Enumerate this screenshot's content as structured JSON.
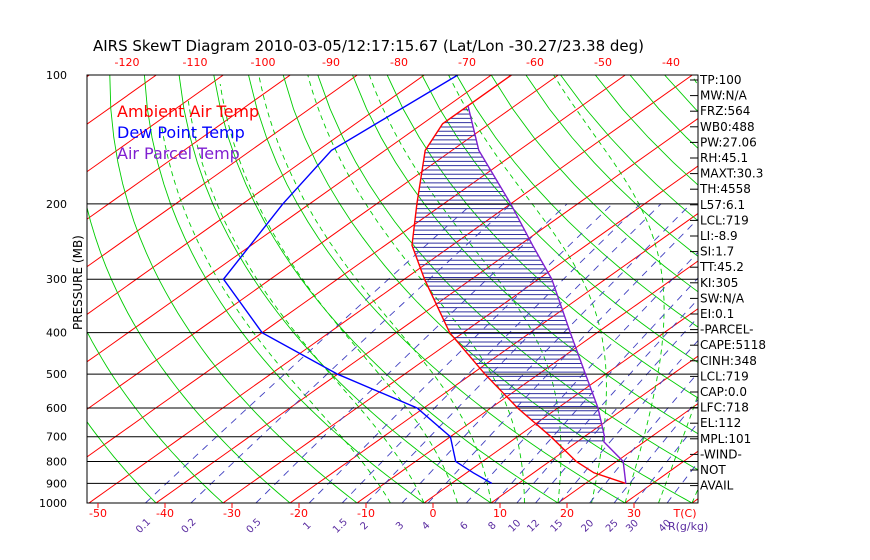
{
  "chart_data": {
    "type": "line",
    "title": "AIRS SkewT Diagram 2010-03-05/12:17:15.67 (Lat/Lon -30.27/23.38 deg)",
    "ylabel": "PRESSURE (MB)",
    "pressure_ticks": [
      100,
      200,
      300,
      400,
      500,
      600,
      700,
      800,
      900,
      1000
    ],
    "bottom_temp_ticks": [
      -50,
      -40,
      -30,
      -20,
      -10,
      0,
      10,
      20,
      30
    ],
    "bottom_temp_unit": "T(C)",
    "top_temp_ticks": [
      -120,
      -110,
      -100,
      -90,
      -80,
      -70,
      -60,
      -50,
      -40
    ],
    "mixing_ratio_ticks": [
      "0.1",
      "0.2",
      "0.5",
      "1",
      "1.5",
      "2",
      "3",
      "4",
      "6",
      "8",
      "10",
      "12",
      "15",
      "20",
      "25",
      "30",
      "40"
    ],
    "mixing_ratio_unit": "R(g/kg)",
    "legend": [
      {
        "name": "Ambient Air Temp",
        "color": "#ff0000"
      },
      {
        "name": "Dew Point Temp",
        "color": "#0000ff"
      },
      {
        "name": "Air Parcel Temp",
        "color": "#7f1fd0"
      }
    ],
    "series": [
      {
        "name": "Ambient Air Temp",
        "color": "#ff0000",
        "points": [
          [
            100,
            -77
          ],
          [
            130,
            -77
          ],
          [
            150,
            -74
          ],
          [
            200,
            -64
          ],
          [
            250,
            -56
          ],
          [
            300,
            -47
          ],
          [
            400,
            -32
          ],
          [
            500,
            -18
          ],
          [
            600,
            -6
          ],
          [
            700,
            5
          ],
          [
            800,
            14
          ],
          [
            850,
            19
          ],
          [
            900,
            26
          ]
        ]
      },
      {
        "name": "Dew Point Temp",
        "color": "#0000ff",
        "points": [
          [
            100,
            -85
          ],
          [
            150,
            -88
          ],
          [
            200,
            -84
          ],
          [
            300,
            -77
          ],
          [
            400,
            -60
          ],
          [
            500,
            -40
          ],
          [
            600,
            -21
          ],
          [
            700,
            -10
          ],
          [
            800,
            -4
          ],
          [
            850,
            1
          ],
          [
            900,
            6
          ]
        ]
      },
      {
        "name": "Air Parcel Temp",
        "color": "#7f1fd0",
        "points": [
          [
            118,
            -77
          ],
          [
            150,
            -66
          ],
          [
            200,
            -50
          ],
          [
            250,
            -38
          ],
          [
            300,
            -28
          ],
          [
            400,
            -14
          ],
          [
            500,
            -3
          ],
          [
            600,
            6
          ],
          [
            700,
            13
          ],
          [
            720,
            14
          ],
          [
            800,
            21
          ],
          [
            900,
            26
          ]
        ]
      }
    ],
    "grid": true
  },
  "indices": [
    "TP:100",
    "MW:N/A",
    "FRZ:564",
    "WB0:488",
    "PW:27.06",
    "RH:45.1",
    "MAXT:30.3",
    "TH:4558",
    "L57:6.1",
    "LCL:719",
    "LI:-8.9",
    "SI:1.7",
    "TT:45.2",
    "KI:305",
    "SW:N/A",
    "EI:0.1",
    "-PARCEL-",
    "CAPE:5118",
    "CINH:348",
    "LCL:719",
    "CAP:0.0",
    "LFC:718",
    "EL:112",
    "MPL:101",
    "-WIND-",
    "NOT",
    "AVAIL"
  ],
  "colors": {
    "isotherm": "#ff0000",
    "dry_adiabat": "#00cc00",
    "moist_adiabat": "#00cc00",
    "mixing_ratio": "#4040c0",
    "hatch": "#3030a0"
  }
}
